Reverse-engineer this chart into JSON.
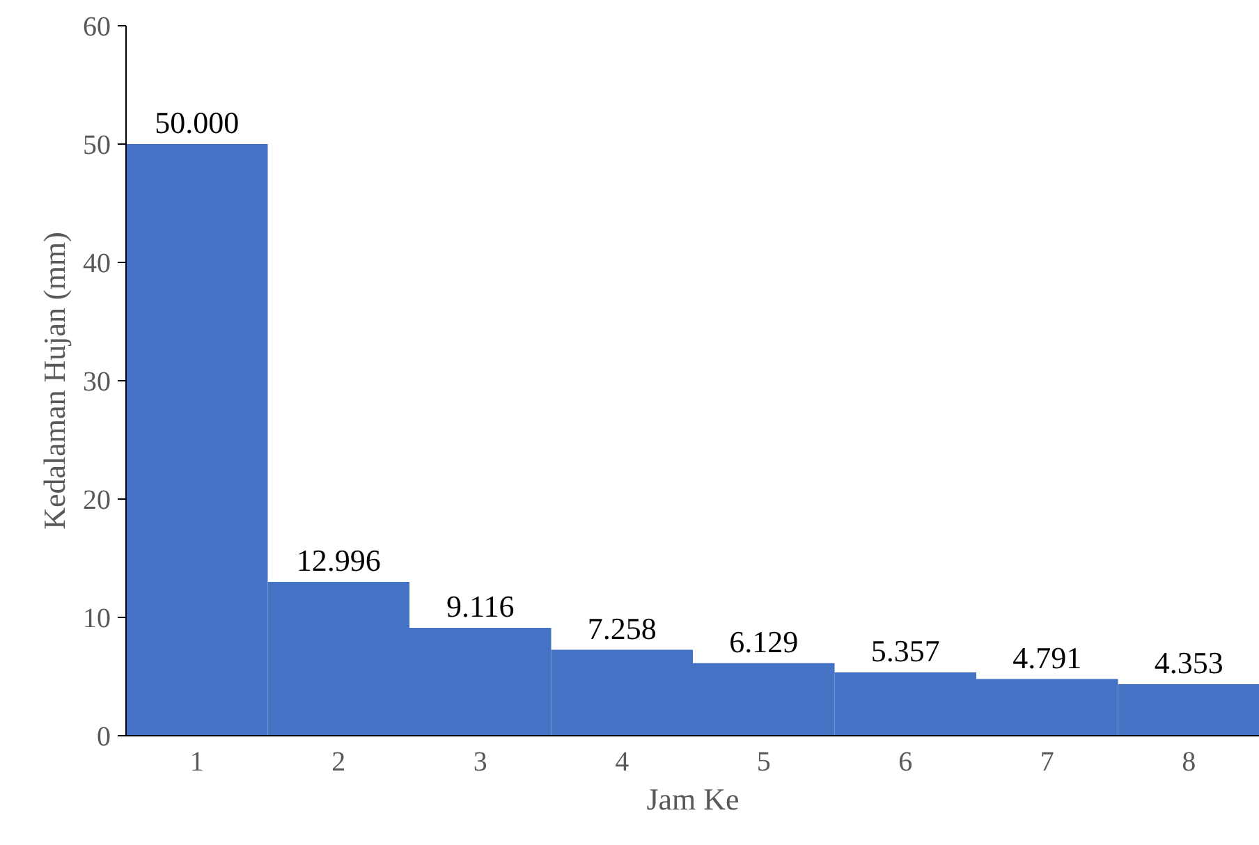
{
  "chart_data": {
    "type": "bar",
    "xlabel": "Jam Ke",
    "ylabel": "Kedalaman Hujan (mm)",
    "categories": [
      "1",
      "2",
      "3",
      "4",
      "5",
      "6",
      "7",
      "8"
    ],
    "values": [
      50.0,
      12.996,
      9.116,
      7.258,
      6.129,
      5.357,
      4.791,
      4.353
    ],
    "value_labels": [
      "50.000",
      "12.996",
      "9.116",
      "7.258",
      "6.129",
      "5.357",
      "4.791",
      "4.353"
    ],
    "color": "#4472c4",
    "ylim": [
      0,
      60
    ],
    "yticks": [
      0,
      10,
      20,
      30,
      40,
      50,
      60
    ],
    "grid": false
  }
}
